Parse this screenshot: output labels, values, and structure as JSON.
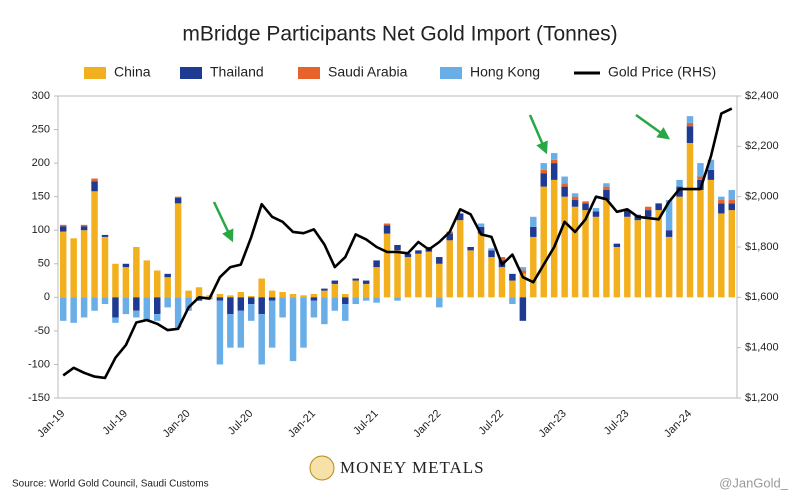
{
  "chart_data": {
    "type": "bar",
    "title": "mBridge Participants Net Gold Import (Tonnes)",
    "categories": [
      "Jan-19",
      null,
      null,
      null,
      null,
      null,
      "Jul-19",
      null,
      null,
      null,
      null,
      null,
      "Jan-20",
      null,
      null,
      null,
      null,
      null,
      "Jul-20",
      null,
      null,
      null,
      null,
      null,
      "Jan-21",
      null,
      null,
      null,
      null,
      null,
      "Jul-21",
      null,
      null,
      null,
      null,
      null,
      "Jan-22",
      null,
      null,
      null,
      null,
      null,
      "Jul-22",
      null,
      null,
      null,
      null,
      null,
      "Jan-23",
      null,
      null,
      null,
      null,
      null,
      "Jul-23",
      null,
      null,
      null,
      null,
      null,
      "Jan-24",
      null,
      null,
      null,
      null
    ],
    "series": [
      {
        "name": "China",
        "color": "#f2b01e",
        "values": [
          98,
          88,
          100,
          158,
          90,
          50,
          45,
          75,
          55,
          40,
          30,
          140,
          10,
          15,
          3,
          5,
          3,
          8,
          2,
          28,
          10,
          8,
          5,
          3,
          5,
          10,
          20,
          5,
          25,
          20,
          45,
          95,
          70,
          60,
          65,
          68,
          50,
          85,
          115,
          70,
          95,
          60,
          45,
          25,
          35,
          90,
          165,
          175,
          150,
          135,
          130,
          120,
          145,
          75,
          120,
          115,
          120,
          130,
          90,
          150,
          230,
          160,
          175,
          125,
          130
        ]
      },
      {
        "name": "Thailand",
        "color": "#1f3a93",
        "values": [
          8,
          0,
          6,
          15,
          3,
          -30,
          5,
          -20,
          0,
          -25,
          5,
          8,
          0,
          -5,
          0,
          -5,
          -25,
          -20,
          -10,
          -25,
          -5,
          0,
          0,
          0,
          -5,
          3,
          5,
          -10,
          3,
          5,
          10,
          12,
          8,
          5,
          5,
          7,
          10,
          10,
          10,
          5,
          10,
          10,
          10,
          10,
          -35,
          15,
          20,
          25,
          15,
          10,
          10,
          8,
          15,
          5,
          10,
          8,
          10,
          10,
          10,
          15,
          25,
          15,
          15,
          15,
          10
        ]
      },
      {
        "name": "Saudi Arabia",
        "color": "#e8632b",
        "values": [
          2,
          0,
          2,
          4,
          0,
          0,
          0,
          0,
          0,
          0,
          0,
          2,
          0,
          0,
          0,
          0,
          0,
          0,
          0,
          0,
          0,
          0,
          0,
          0,
          0,
          0,
          0,
          0,
          0,
          0,
          0,
          3,
          0,
          0,
          0,
          0,
          0,
          3,
          0,
          0,
          0,
          0,
          5,
          0,
          5,
          0,
          5,
          5,
          5,
          5,
          3,
          0,
          5,
          0,
          0,
          0,
          5,
          0,
          0,
          0,
          5,
          5,
          0,
          5,
          5
        ]
      },
      {
        "name": "Hong Kong",
        "color": "#6aaee8",
        "values": [
          -35,
          -38,
          -30,
          -20,
          -10,
          -8,
          -25,
          -10,
          -35,
          -10,
          -15,
          -45,
          -20,
          0,
          -3,
          -95,
          -50,
          -55,
          -25,
          -75,
          -70,
          -30,
          -95,
          -75,
          -25,
          -40,
          -20,
          -25,
          -10,
          -5,
          -8,
          0,
          -5,
          0,
          0,
          0,
          -15,
          0,
          0,
          0,
          5,
          3,
          0,
          -10,
          5,
          15,
          10,
          10,
          10,
          5,
          0,
          5,
          5,
          0,
          0,
          0,
          0,
          0,
          45,
          10,
          10,
          20,
          15,
          5,
          15
        ]
      },
      {
        "name": "Gold Price (RHS)",
        "type": "line",
        "axis": "y2",
        "color": "#000000",
        "values": [
          1290,
          1320,
          1300,
          1285,
          1280,
          1360,
          1410,
          1500,
          1510,
          1495,
          1470,
          1475,
          1560,
          1600,
          1595,
          1680,
          1720,
          1730,
          1840,
          1970,
          1920,
          1900,
          1860,
          1855,
          1870,
          1810,
          1720,
          1760,
          1850,
          1830,
          1800,
          1780,
          1780,
          1775,
          1820,
          1790,
          1820,
          1860,
          1950,
          1930,
          1850,
          1840,
          1730,
          1770,
          1680,
          1660,
          1730,
          1800,
          1900,
          1860,
          1910,
          2000,
          1990,
          1940,
          1950,
          1920,
          1915,
          1910,
          1980,
          2030,
          2030,
          2030,
          2160,
          2330,
          2350
        ]
      }
    ],
    "ylim": [
      -150,
      300
    ],
    "yticks": [
      -150,
      -100,
      -50,
      0,
      50,
      100,
      150,
      200,
      250,
      300
    ],
    "y2lim": [
      1200,
      2400
    ],
    "y2ticks": [
      {
        "value": 1200,
        "label": "$1,200"
      },
      {
        "value": 1400,
        "label": "$1,400"
      },
      {
        "value": 1600,
        "label": "$1,600"
      },
      {
        "value": 1800,
        "label": "$1,800"
      },
      {
        "value": 2000,
        "label": "$2,000"
      },
      {
        "value": 2200,
        "label": "$2,200"
      },
      {
        "value": 2400,
        "label": "$2,400"
      }
    ],
    "grid": false,
    "legend": "top",
    "source": "Source: World Gold Council, Saudi Customs",
    "brand": "MONEY METALS",
    "credit": "@JanGold_"
  }
}
